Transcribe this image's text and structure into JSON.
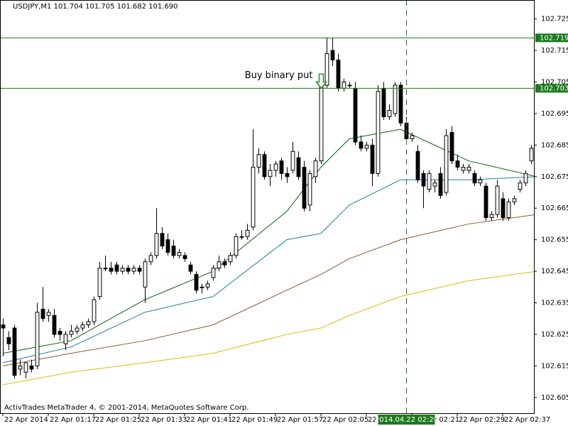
{
  "chart_data": {
    "type": "candlestick",
    "title": "USDJPY,M1  101.704 101.705 101.682 101.690",
    "footer": "ActivTrades MetaTrader 4, © 2001-2014, MetaQuotes Software Corp.",
    "ylim": [
      102.6,
      102.731
    ],
    "yticks": [
      102.725,
      102.715,
      102.705,
      102.695,
      102.685,
      102.675,
      102.665,
      102.655,
      102.645,
      102.635,
      102.625,
      102.615,
      102.605
    ],
    "xlim": [
      -0.5,
      93.5
    ],
    "xticks": [
      {
        "value": 0,
        "label": "22 Apr 2014"
      },
      {
        "value": 8,
        "label": "22 Apr 01:17"
      },
      {
        "value": 16,
        "label": "22 Apr 01:25"
      },
      {
        "value": 24,
        "label": "22 Apr 01:33"
      },
      {
        "value": 32,
        "label": "22 Apr 01:41"
      },
      {
        "value": 40,
        "label": "22 Apr 01:49"
      },
      {
        "value": 48,
        "label": "22 Apr 01:57"
      },
      {
        "value": 56,
        "label": "22 Apr 02:05"
      },
      {
        "value": 64,
        "label": "22 Apr 02:13"
      },
      {
        "value": 72,
        "label": "22 Apr 02:21"
      },
      {
        "value": 80,
        "label": "22 Apr 02:29"
      },
      {
        "value": 88,
        "label": "22 Apr 02:37"
      }
    ],
    "candles": [
      [
        102.628,
        102.63,
        102.618,
        102.627
      ],
      [
        102.624,
        102.626,
        102.62,
        102.622
      ],
      [
        102.627,
        102.628,
        102.611,
        102.612
      ],
      [
        102.614,
        102.617,
        102.612,
        102.615
      ],
      [
        102.613,
        102.616,
        102.611,
        102.616
      ],
      [
        102.615,
        102.617,
        102.613,
        102.614
      ],
      [
        102.615,
        102.635,
        102.614,
        102.632
      ],
      [
        102.633,
        102.64,
        102.629,
        102.63
      ],
      [
        102.631,
        102.633,
        102.629,
        102.632
      ],
      [
        102.631,
        102.633,
        102.624,
        102.625
      ],
      [
        102.626,
        102.627,
        102.623,
        102.625
      ],
      [
        102.622,
        102.626,
        102.62,
        102.625
      ],
      [
        102.625,
        102.628,
        102.624,
        102.626
      ],
      [
        102.626,
        102.628,
        102.625,
        102.627
      ],
      [
        102.627,
        102.629,
        102.626,
        102.628
      ],
      [
        102.628,
        102.63,
        102.627,
        102.629
      ],
      [
        102.629,
        102.637,
        102.628,
        102.636
      ],
      [
        102.637,
        102.648,
        102.636,
        102.646
      ],
      [
        102.646,
        102.65,
        102.645,
        102.646
      ],
      [
        102.646,
        102.648,
        102.644,
        102.645
      ],
      [
        102.647,
        102.648,
        102.644,
        102.645
      ],
      [
        102.645,
        102.647,
        102.644,
        102.646
      ],
      [
        102.646,
        102.647,
        102.644,
        102.645
      ],
      [
        102.645,
        102.647,
        102.644,
        102.646
      ],
      [
        102.646,
        102.647,
        102.644,
        102.645
      ],
      [
        102.64,
        102.649,
        102.635,
        102.648
      ],
      [
        102.648,
        102.651,
        102.647,
        102.65
      ],
      [
        102.65,
        102.665,
        102.649,
        102.657
      ],
      [
        102.657,
        102.659,
        102.652,
        102.653
      ],
      [
        102.655,
        102.657,
        102.65,
        102.651
      ],
      [
        102.653,
        102.655,
        102.649,
        102.65
      ],
      [
        102.65,
        102.652,
        102.649,
        102.651
      ],
      [
        102.65,
        102.651,
        102.648,
        102.649
      ],
      [
        102.647,
        102.648,
        102.644,
        102.645
      ],
      [
        102.644,
        102.645,
        102.638,
        102.639
      ],
      [
        102.64,
        102.641,
        102.638,
        102.64
      ],
      [
        102.64,
        102.642,
        102.639,
        102.641
      ],
      [
        102.643,
        102.647,
        102.642,
        102.646
      ],
      [
        102.646,
        102.65,
        102.645,
        102.648
      ],
      [
        102.648,
        102.649,
        102.646,
        102.647
      ],
      [
        102.648,
        102.651,
        102.647,
        102.65
      ],
      [
        102.65,
        102.657,
        102.649,
        102.656
      ],
      [
        102.656,
        102.658,
        102.655,
        102.656
      ],
      [
        102.656,
        102.66,
        102.655,
        102.658
      ],
      [
        102.659,
        102.69,
        102.658,
        102.678
      ],
      [
        102.678,
        102.684,
        102.676,
        102.682
      ],
      [
        102.682,
        102.683,
        102.674,
        102.675
      ],
      [
        102.675,
        102.679,
        102.672,
        102.677
      ],
      [
        102.677,
        102.68,
        102.675,
        102.679
      ],
      [
        102.68,
        102.681,
        102.674,
        102.676
      ],
      [
        102.676,
        102.678,
        102.673,
        102.675
      ],
      [
        102.677,
        102.686,
        102.676,
        102.683
      ],
      [
        102.681,
        102.683,
        102.674,
        102.675
      ],
      [
        102.678,
        102.68,
        102.664,
        102.665
      ],
      [
        102.666,
        102.677,
        102.664,
        102.676
      ],
      [
        102.675,
        102.681,
        102.673,
        102.68
      ],
      [
        102.68,
        102.707,
        102.679,
        102.704
      ],
      [
        102.704,
        102.719,
        102.703,
        102.714
      ],
      [
        102.715,
        102.719,
        102.71,
        102.712
      ],
      [
        102.712,
        102.714,
        102.702,
        102.703
      ],
      [
        102.703,
        102.706,
        102.702,
        102.705
      ],
      [
        102.704,
        102.705,
        102.703,
        102.704
      ],
      [
        102.703,
        102.705,
        102.685,
        102.686
      ],
      [
        102.686,
        102.688,
        102.683,
        102.684
      ],
      [
        102.684,
        102.686,
        102.683,
        102.685
      ],
      [
        102.685,
        102.687,
        102.672,
        102.676
      ],
      [
        102.676,
        102.704,
        102.675,
        102.702
      ],
      [
        102.703,
        102.705,
        102.693,
        102.694
      ],
      [
        102.694,
        102.698,
        102.693,
        102.696
      ],
      [
        102.695,
        102.705,
        102.694,
        102.704
      ],
      [
        102.704,
        102.705,
        102.691,
        102.692
      ],
      [
        102.692,
        102.694,
        102.686,
        102.687
      ],
      [
        102.687,
        102.689,
        102.686,
        102.688
      ],
      [
        102.683,
        102.685,
        102.673,
        102.674
      ],
      [
        102.676,
        102.677,
        102.665,
        102.672
      ],
      [
        102.671,
        102.677,
        102.67,
        102.676
      ],
      [
        102.672,
        102.674,
        102.67,
        102.673
      ],
      [
        102.676,
        102.678,
        102.668,
        102.669
      ],
      [
        102.67,
        102.69,
        102.669,
        102.688
      ],
      [
        102.689,
        102.691,
        102.679,
        102.68
      ],
      [
        102.68,
        102.682,
        102.677,
        102.678
      ],
      [
        102.677,
        102.679,
        102.676,
        102.678
      ],
      [
        102.677,
        102.679,
        102.676,
        102.678
      ],
      [
        102.676,
        102.677,
        102.672,
        102.673
      ],
      [
        102.673,
        102.675,
        102.672,
        102.674
      ],
      [
        102.672,
        102.673,
        102.661,
        102.662
      ],
      [
        102.662,
        102.664,
        102.661,
        102.663
      ],
      [
        102.663,
        102.674,
        102.662,
        102.672
      ],
      [
        102.668,
        102.67,
        102.661,
        102.662
      ],
      [
        102.662,
        102.668,
        102.661,
        102.667
      ],
      [
        102.667,
        102.669,
        102.666,
        102.668
      ],
      [
        102.671,
        102.674,
        102.67,
        102.673
      ],
      [
        102.673,
        102.677,
        102.672,
        102.676
      ],
      [
        102.68,
        102.685,
        102.679,
        102.684
      ],
      [
        102.686,
        102.687,
        102.674,
        102.675
      ]
    ],
    "ma_x": [
      0,
      12,
      25,
      37,
      50,
      56,
      61,
      70,
      82,
      94
    ],
    "series": [
      {
        "color": "#006400",
        "values": [
          102.619,
          102.623,
          102.636,
          102.645,
          102.664,
          102.678,
          102.687,
          102.69,
          102.68,
          102.675
        ]
      },
      {
        "color": "#1e7ea0",
        "values": [
          102.616,
          102.621,
          102.632,
          102.637,
          102.655,
          102.657,
          102.666,
          102.674,
          102.674,
          102.675
        ]
      },
      {
        "color": "#8b5a2b",
        "values": [
          102.615,
          102.619,
          102.623,
          102.628,
          102.639,
          102.644,
          102.649,
          102.655,
          102.66,
          102.663
        ]
      },
      {
        "color": "#e6b800",
        "values": [
          102.609,
          102.613,
          102.616,
          102.619,
          102.625,
          102.627,
          102.631,
          102.637,
          102.642,
          102.645
        ]
      }
    ],
    "hlines": [
      102.719,
      102.703
    ],
    "hline_color": "#1c7a1c",
    "vline": {
      "x": 71,
      "label": "2014.04.22 02:20"
    },
    "annotation": {
      "text": "Buy binary put",
      "x": 56,
      "y": 102.703
    }
  }
}
